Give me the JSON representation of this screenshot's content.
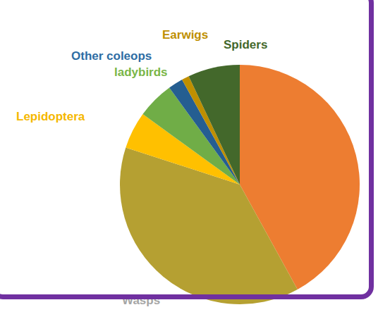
{
  "chart_data": {
    "type": "pie",
    "categories": [
      null,
      "Wasps",
      "Lepidoptera",
      "ladybirds",
      "Other coleops",
      "Earwigs",
      "Spiders"
    ],
    "values": [
      42,
      38,
      5,
      5,
      2,
      1,
      7
    ],
    "colors": [
      "#ed7d31",
      "#b5a032",
      "#ffc000",
      "#70ad47",
      "#255e91",
      "#bf8f00",
      "#43682b"
    ]
  }
}
